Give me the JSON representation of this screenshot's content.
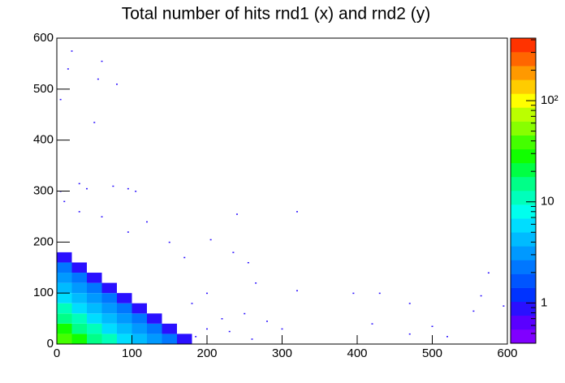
{
  "chart_data": {
    "type": "hist2d",
    "title": "Total number of hits rnd1 (x) and rnd2 (y)",
    "xlim": [
      0,
      600
    ],
    "ylim": [
      0,
      600
    ],
    "xticks": [
      0,
      100,
      200,
      300,
      400,
      500,
      600
    ],
    "yticks": [
      0,
      100,
      200,
      300,
      400,
      500,
      600
    ],
    "cell_size": 20,
    "cells": [
      [
        0,
        0,
        38
      ],
      [
        20,
        0,
        25
      ],
      [
        40,
        0,
        16
      ],
      [
        60,
        0,
        10
      ],
      [
        80,
        0,
        6
      ],
      [
        100,
        0,
        4
      ],
      [
        120,
        0,
        3
      ],
      [
        140,
        0,
        2
      ],
      [
        160,
        0,
        1
      ],
      [
        0,
        20,
        25
      ],
      [
        20,
        20,
        16
      ],
      [
        40,
        20,
        10
      ],
      [
        60,
        20,
        6
      ],
      [
        80,
        20,
        4
      ],
      [
        100,
        20,
        3
      ],
      [
        120,
        20,
        2
      ],
      [
        140,
        20,
        1
      ],
      [
        0,
        40,
        16
      ],
      [
        20,
        40,
        10
      ],
      [
        40,
        40,
        6
      ],
      [
        60,
        40,
        4
      ],
      [
        80,
        40,
        3
      ],
      [
        100,
        40,
        2
      ],
      [
        120,
        40,
        1
      ],
      [
        0,
        60,
        10
      ],
      [
        20,
        60,
        6
      ],
      [
        40,
        60,
        4
      ],
      [
        60,
        60,
        3
      ],
      [
        80,
        60,
        2
      ],
      [
        100,
        60,
        1
      ],
      [
        0,
        80,
        6
      ],
      [
        20,
        80,
        4
      ],
      [
        40,
        80,
        3
      ],
      [
        60,
        80,
        2
      ],
      [
        80,
        80,
        1
      ],
      [
        0,
        100,
        4
      ],
      [
        20,
        100,
        3
      ],
      [
        40,
        100,
        2
      ],
      [
        60,
        100,
        1
      ],
      [
        0,
        120,
        3
      ],
      [
        20,
        120,
        2
      ],
      [
        40,
        120,
        1
      ],
      [
        0,
        140,
        2
      ],
      [
        20,
        140,
        1
      ],
      [
        0,
        160,
        1
      ]
    ],
    "points": [
      [
        20,
        575
      ],
      [
        60,
        555
      ],
      [
        15,
        540
      ],
      [
        55,
        520
      ],
      [
        80,
        510
      ],
      [
        5,
        480
      ],
      [
        50,
        435
      ],
      [
        30,
        315
      ],
      [
        40,
        305
      ],
      [
        75,
        310
      ],
      [
        95,
        305
      ],
      [
        105,
        300
      ],
      [
        240,
        255
      ],
      [
        320,
        260
      ],
      [
        205,
        205
      ],
      [
        235,
        180
      ],
      [
        255,
        160
      ],
      [
        265,
        120
      ],
      [
        320,
        105
      ],
      [
        395,
        100
      ],
      [
        430,
        100
      ],
      [
        470,
        80
      ],
      [
        575,
        140
      ],
      [
        565,
        95
      ],
      [
        595,
        75
      ],
      [
        555,
        65
      ],
      [
        500,
        35
      ],
      [
        520,
        15
      ],
      [
        470,
        20
      ],
      [
        420,
        40
      ],
      [
        300,
        30
      ],
      [
        280,
        45
      ],
      [
        250,
        60
      ],
      [
        220,
        50
      ],
      [
        200,
        30
      ],
      [
        185,
        15
      ],
      [
        120,
        240
      ],
      [
        150,
        200
      ],
      [
        95,
        220
      ],
      [
        170,
        170
      ],
      [
        60,
        250
      ],
      [
        30,
        260
      ],
      [
        10,
        280
      ],
      [
        5,
        300
      ],
      [
        200,
        100
      ],
      [
        180,
        80
      ],
      [
        230,
        25
      ],
      [
        260,
        10
      ]
    ],
    "point_count": 1,
    "zlim": [
      0.4,
      415
    ],
    "zlog": true,
    "zticks": [
      1,
      10,
      {
        "value": 100,
        "label": "10²"
      }
    ],
    "zminor_ticks": [
      0.5,
      0.6,
      0.7,
      0.8,
      0.9,
      2,
      3,
      4,
      5,
      6,
      7,
      8,
      9,
      20,
      30,
      40,
      50,
      60,
      70,
      80,
      90,
      200,
      300,
      400
    ],
    "palette": [
      "#8000ff",
      "#5a00ff",
      "#2a10ff",
      "#0033ff",
      "#0055ff",
      "#0077ff",
      "#0099ff",
      "#00bbff",
      "#00ddff",
      "#00ffee",
      "#00ffbb",
      "#00ff88",
      "#00ff44",
      "#11ff00",
      "#44ff00",
      "#88ff00",
      "#bbff00",
      "#ffff00",
      "#ffcc00",
      "#ff9900",
      "#ff6600",
      "#ff3300"
    ]
  }
}
